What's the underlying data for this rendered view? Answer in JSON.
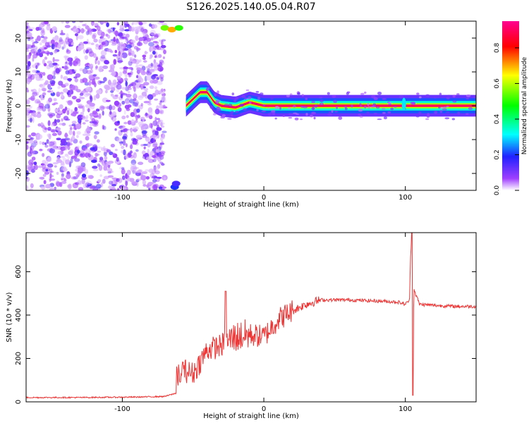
{
  "figure": {
    "title": "S126.2025.140.05.04.R07"
  },
  "colors": {
    "snr_line": "#ee3333",
    "background": "#ffffff"
  },
  "chart_data": [
    {
      "type": "heatmap",
      "title": "S126.2025.140.05.04.R07",
      "xlabel": "Height of straight line (km)",
      "ylabel": "Frequency (Hz)",
      "xlim": [
        -168,
        150
      ],
      "ylim": [
        -25,
        25
      ],
      "xticks": [
        -100,
        0,
        100
      ],
      "yticks": [
        -20,
        -10,
        0,
        10,
        20
      ],
      "colorbar": {
        "label": "Normalized spectral amplitude",
        "range": [
          0,
          0.95
        ],
        "ticks": [
          0.0,
          0.2,
          0.4,
          0.6,
          0.8
        ],
        "colormap": "rainbow",
        "colors": [
          "#ffffff",
          "#8a2be2",
          "#0000ff",
          "#00ffff",
          "#00ff00",
          "#ffff00",
          "#ff0000",
          "#ff0080"
        ]
      },
      "features": [
        {
          "region": "noise",
          "x_range": [
            -168,
            -70
          ],
          "y_range": [
            -25,
            25
          ],
          "amplitude": 0.1
        },
        {
          "region": "signal_trace",
          "x": [
            -55,
            -50,
            -45,
            -40,
            -35,
            -30,
            -20,
            -10,
            0,
            20,
            60,
            100,
            150
          ],
          "y": [
            0,
            2,
            4,
            4,
            1,
            0,
            -0.5,
            1,
            0,
            0,
            0,
            0,
            0
          ],
          "amplitude": 0.9
        }
      ]
    },
    {
      "type": "line",
      "xlabel": "Height of straight line (km)",
      "ylabel": "SNR (10 * v/v)",
      "xlim": [
        -168,
        150
      ],
      "ylim": [
        0,
        780
      ],
      "xticks": [
        -100,
        0,
        100
      ],
      "yticks": [
        0,
        200,
        400,
        600
      ],
      "series": [
        {
          "x": [
            -168,
            -130,
            -90,
            -70,
            -62,
            -58,
            -50,
            -40,
            -30,
            -20,
            -10,
            0,
            10,
            20,
            30,
            40,
            60,
            80,
            95,
            100,
            103,
            104,
            105,
            106,
            110,
            120,
            135,
            150
          ],
          "values": [
            20,
            20,
            22,
            25,
            40,
            150,
            130,
            240,
            260,
            300,
            310,
            300,
            380,
            420,
            450,
            470,
            470,
            465,
            460,
            450,
            470,
            760,
            30,
            520,
            450,
            445,
            440,
            440
          ]
        }
      ]
    }
  ]
}
